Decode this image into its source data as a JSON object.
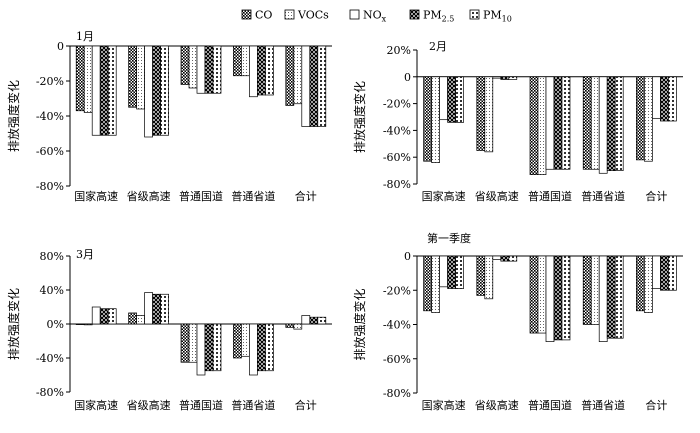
{
  "legend": {
    "items": [
      {
        "label": "CO",
        "sub": "",
        "pattern": "dots"
      },
      {
        "label": "VOCs",
        "sub": "",
        "pattern": "light"
      },
      {
        "label": "NO",
        "sub": "x",
        "pattern": "white"
      },
      {
        "label": "PM",
        "sub": "2.5",
        "pattern": "cross"
      },
      {
        "label": "PM",
        "sub": "10",
        "pattern": "grid"
      }
    ]
  },
  "chart_data": [
    {
      "type": "bar",
      "title": "1月",
      "ylabel": "排放强度变化",
      "ylim": [
        -80,
        0
      ],
      "yticks": [
        "0",
        "-20%",
        "-40%",
        "-60%",
        "-80%"
      ],
      "categories": [
        "国家高速",
        "省级高速",
        "普通国道",
        "普通省道",
        "合计"
      ],
      "series": [
        {
          "name": "CO",
          "values": [
            -37,
            -35,
            -22,
            -17,
            -34
          ]
        },
        {
          "name": "VOCs",
          "values": [
            -38,
            -36,
            -24,
            -17,
            -33
          ]
        },
        {
          "name": "NOx",
          "values": [
            -51,
            -52,
            -27,
            -29,
            -46
          ]
        },
        {
          "name": "PM2.5",
          "values": [
            -51,
            -51,
            -27,
            -28,
            -46
          ]
        },
        {
          "name": "PM10",
          "values": [
            -51,
            -51,
            -27,
            -28,
            -46
          ]
        }
      ]
    },
    {
      "type": "bar",
      "title": "2月",
      "ylabel": "排放强度变化",
      "ylim": [
        -80,
        20
      ],
      "yticks": [
        "20%",
        "0",
        "-20%",
        "-40%",
        "-60%",
        "-80%"
      ],
      "categories": [
        "国家高速",
        "省级高速",
        "普通国道",
        "普通省道",
        "合计"
      ],
      "series": [
        {
          "name": "CO",
          "values": [
            -63,
            -55,
            -73,
            -69,
            -62
          ]
        },
        {
          "name": "VOCs",
          "values": [
            -64,
            -56,
            -73,
            -69,
            -63
          ]
        },
        {
          "name": "NOx",
          "values": [
            -32,
            -1,
            -69,
            -72,
            -31
          ]
        },
        {
          "name": "PM2.5",
          "values": [
            -34,
            -2,
            -69,
            -70,
            -33
          ]
        },
        {
          "name": "PM10",
          "values": [
            -34,
            -2,
            -69,
            -70,
            -33
          ]
        }
      ]
    },
    {
      "type": "bar",
      "title": "3月",
      "ylabel": "排放强度变化",
      "ylim": [
        -80,
        80
      ],
      "yticks": [
        "80%",
        "40%",
        "0%",
        "-40%",
        "-80%"
      ],
      "categories": [
        "国家高速",
        "省级高速",
        "普通国道",
        "普通省道",
        "合计"
      ],
      "series": [
        {
          "name": "CO",
          "values": [
            0,
            13,
            -45,
            -40,
            -4
          ]
        },
        {
          "name": "VOCs",
          "values": [
            -1,
            10,
            -45,
            -38,
            -6
          ]
        },
        {
          "name": "NOx",
          "values": [
            20,
            37,
            -60,
            -60,
            10
          ]
        },
        {
          "name": "PM2.5",
          "values": [
            18,
            35,
            -55,
            -55,
            8
          ]
        },
        {
          "name": "PM10",
          "values": [
            18,
            35,
            -55,
            -55,
            8
          ]
        }
      ]
    },
    {
      "type": "bar",
      "title": "第一季度",
      "ylabel": "排放强度变化",
      "ylim": [
        -80,
        0
      ],
      "yticks": [
        "0",
        "-20%",
        "-40%",
        "-60%",
        "-80%"
      ],
      "categories": [
        "国家高速",
        "省级高速",
        "普通国道",
        "普通省道",
        "合计"
      ],
      "series": [
        {
          "name": "CO",
          "values": [
            -32,
            -23,
            -45,
            -40,
            -32
          ]
        },
        {
          "name": "VOCs",
          "values": [
            -33,
            -25,
            -45,
            -40,
            -33
          ]
        },
        {
          "name": "NOx",
          "values": [
            -18,
            -2,
            -50,
            -50,
            -19
          ]
        },
        {
          "name": "PM2.5",
          "values": [
            -19,
            -3,
            -49,
            -48,
            -20
          ]
        },
        {
          "name": "PM10",
          "values": [
            -19,
            -3,
            -49,
            -48,
            -20
          ]
        }
      ]
    }
  ]
}
